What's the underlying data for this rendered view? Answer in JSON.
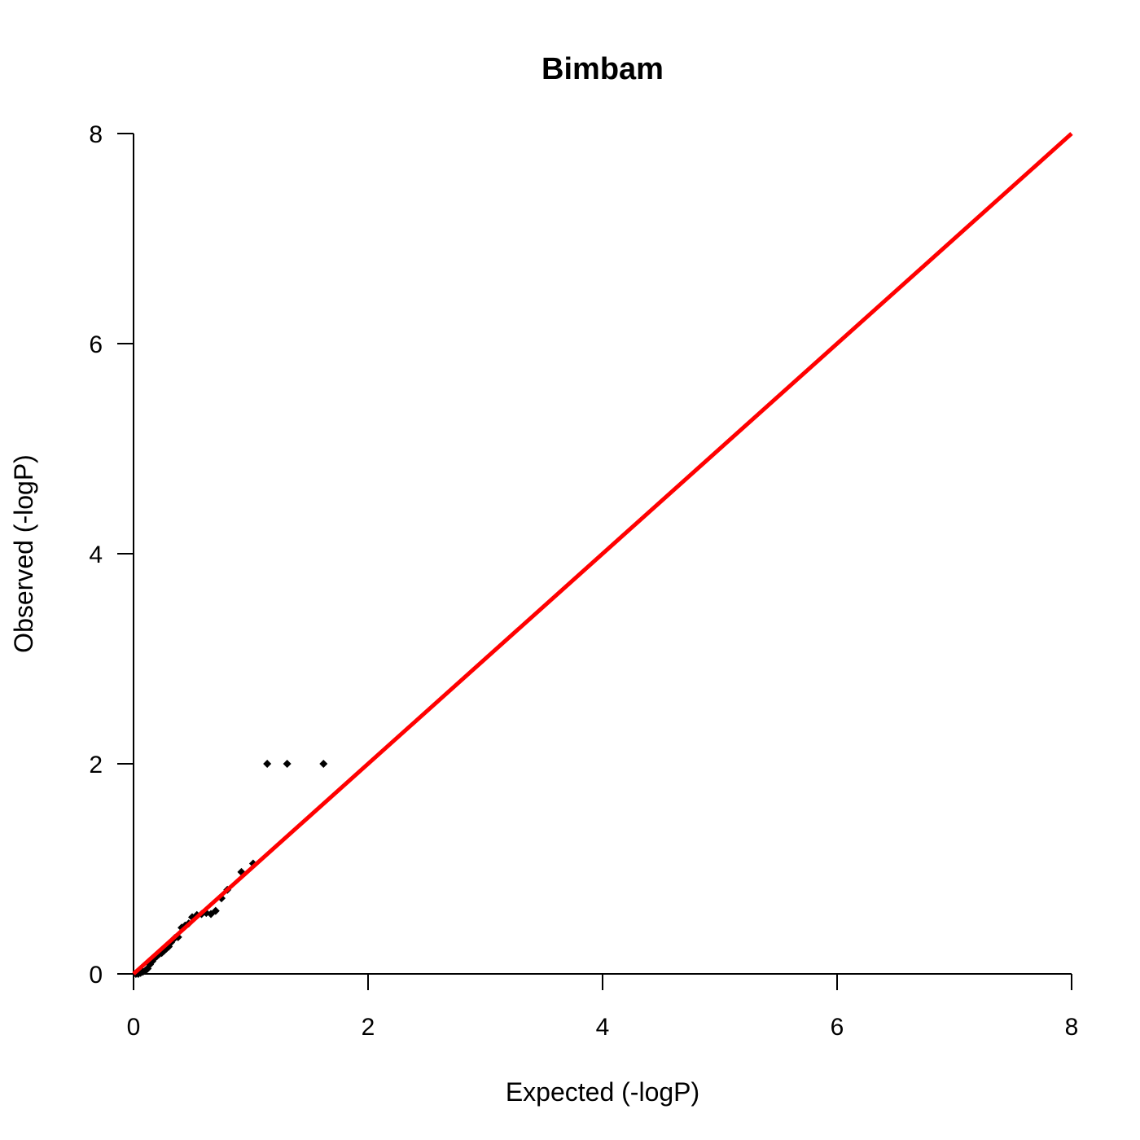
{
  "chart_data": {
    "type": "scatter",
    "title": "Bimbam",
    "xlabel": "Expected (-logP)",
    "ylabel": "Observed (-logP)",
    "xlim": [
      0,
      8
    ],
    "ylim": [
      0,
      8
    ],
    "x_ticks": [
      "0",
      "2",
      "4",
      "6",
      "8"
    ],
    "y_ticks": [
      "0",
      "2",
      "4",
      "6",
      "8"
    ],
    "grid": false,
    "reference_line": {
      "x": [
        0,
        8
      ],
      "y": [
        0,
        8
      ],
      "color": "#ff0000"
    },
    "series": [
      {
        "marker": "diamond",
        "color": "#000000",
        "points": [
          [
            0.02,
            0.0
          ],
          [
            0.04,
            0.0
          ],
          [
            0.06,
            0.01
          ],
          [
            0.08,
            0.02
          ],
          [
            0.1,
            0.03
          ],
          [
            0.12,
            0.05
          ],
          [
            0.14,
            0.09
          ],
          [
            0.16,
            0.12
          ],
          [
            0.18,
            0.15
          ],
          [
            0.2,
            0.17
          ],
          [
            0.22,
            0.19
          ],
          [
            0.24,
            0.2
          ],
          [
            0.26,
            0.22
          ],
          [
            0.28,
            0.24
          ],
          [
            0.3,
            0.26
          ],
          [
            0.32,
            0.3
          ],
          [
            0.35,
            0.34
          ],
          [
            0.38,
            0.35
          ],
          [
            0.41,
            0.44
          ],
          [
            0.44,
            0.46
          ],
          [
            0.47,
            0.48
          ],
          [
            0.5,
            0.54
          ],
          [
            0.54,
            0.56
          ],
          [
            0.58,
            0.57
          ],
          [
            0.62,
            0.58
          ],
          [
            0.66,
            0.57
          ],
          [
            0.7,
            0.6
          ],
          [
            0.75,
            0.72
          ],
          [
            0.8,
            0.8
          ],
          [
            0.92,
            0.97
          ],
          [
            1.02,
            1.05
          ],
          [
            1.14,
            2.0
          ],
          [
            1.31,
            2.0
          ],
          [
            1.62,
            2.0
          ]
        ]
      }
    ]
  }
}
